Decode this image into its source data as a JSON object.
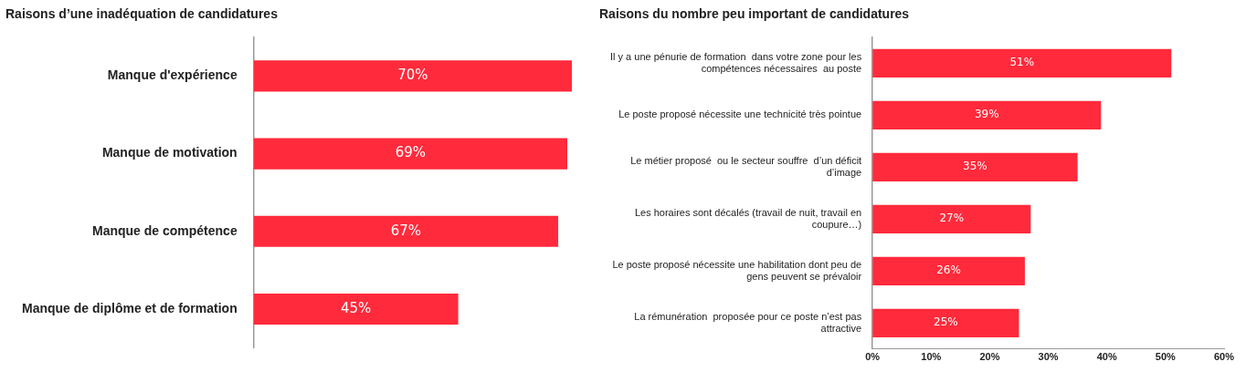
{
  "chart_data": [
    {
      "type": "bar",
      "orientation": "horizontal",
      "title": "Raisons d’une inadéquation de candidatures",
      "categories": [
        "Manque d'expérience",
        "Manque de motivation",
        "Manque de compétence",
        "Manque de diplôme et de formation"
      ],
      "values": [
        70,
        69,
        67,
        45
      ],
      "color": "#ff2a3b",
      "value_labels": [
        "70%",
        "69%",
        "67%",
        "45%"
      ],
      "tick_labels": "y",
      "grid": false,
      "legend": false
    },
    {
      "type": "bar",
      "orientation": "horizontal",
      "title": "Raisons du nombre peu important de candidatures",
      "categories": [
        "Il y a une pénurie de formation  dans votre zone pour les compétences nécessaires  au poste",
        "Le poste proposé nécessite une technicité très pointue",
        "Le métier proposé  ou le secteur souffre  d’un déficit d’image",
        "Les horaires sont décalés (travail de nuit, travail en coupure…)",
        "Le poste proposé nécessite une habilitation dont peu de gens peuvent se prévaloir",
        "La rémunération  proposée pour ce poste n’est pas attractive"
      ],
      "values": [
        51,
        39,
        35,
        27,
        26,
        25
      ],
      "color": "#ff2a3b",
      "value_labels": [
        "51%",
        "39%",
        "35%",
        "27%",
        "26%",
        "25%"
      ],
      "xlim": [
        0,
        60
      ],
      "xticks": [
        {
          "value": 0,
          "label": "0%"
        },
        {
          "value": 10,
          "label": "10%"
        },
        {
          "value": 20,
          "label": "20%"
        },
        {
          "value": 30,
          "label": "30%"
        },
        {
          "value": 40,
          "label": "40%"
        },
        {
          "value": 50,
          "label": "50%"
        },
        {
          "value": 60,
          "label": "60%"
        }
      ],
      "grid": false,
      "legend": false
    }
  ]
}
